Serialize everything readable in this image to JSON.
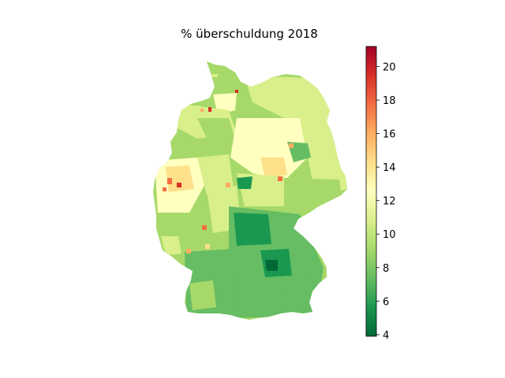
{
  "figure": {
    "title": "% überschuldung 2018"
  },
  "colorbar": {
    "colormap": "RdYlGn_r",
    "min": 3.9,
    "max": 21.2,
    "ticks": [
      4,
      6,
      8,
      10,
      12,
      14,
      16,
      18,
      20
    ],
    "tick_labels": [
      "4",
      "6",
      "8",
      "10",
      "12",
      "14",
      "16",
      "18",
      "20"
    ]
  },
  "map": {
    "region": "Germany districts (Landkreise)",
    "colors": {
      "very_low": "#1a9850",
      "low": "#66bd63",
      "mid_low": "#a6d96a",
      "mid": "#d9ef8b",
      "mid_high": "#ffffbf",
      "high": "#fee08b",
      "very_high": "#fdae61",
      "extreme": "#f46d43",
      "max": "#d73027"
    }
  }
}
